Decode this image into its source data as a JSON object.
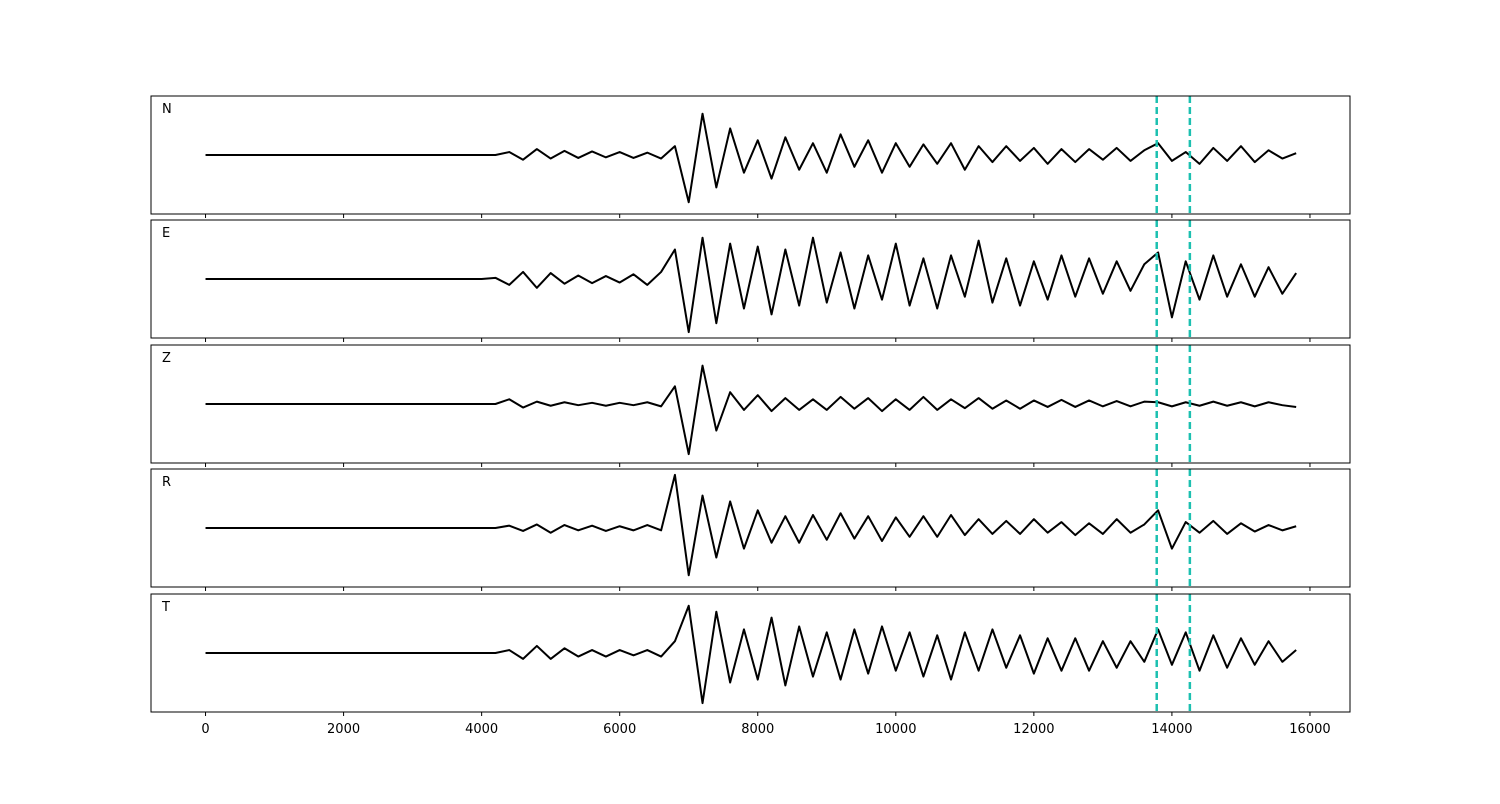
{
  "chart_data": [
    {
      "type": "line",
      "label": "N",
      "x": [
        0,
        1000,
        2000,
        3000,
        4000,
        4200,
        4400,
        4600,
        4800,
        5000,
        5200,
        5400,
        5600,
        5800,
        6000,
        6200,
        6400,
        6600,
        6800,
        7000,
        7200,
        7400,
        7600,
        7800,
        8000,
        8200,
        8400,
        8600,
        8800,
        9000,
        9200,
        9400,
        9600,
        9800,
        10000,
        10200,
        10400,
        10600,
        10800,
        11000,
        11200,
        11400,
        11600,
        11800,
        12000,
        12200,
        12400,
        12600,
        12800,
        13000,
        13200,
        13400,
        13600,
        13800,
        14000,
        14200,
        14400,
        14600,
        14800,
        15000,
        15200,
        15400,
        15600,
        15800
      ],
      "series": [
        {
          "color": "#000000",
          "values": [
            0,
            0,
            0,
            0,
            0,
            0,
            0.05,
            -0.08,
            0.1,
            -0.06,
            0.07,
            -0.05,
            0.06,
            -0.04,
            0.05,
            -0.05,
            0.04,
            -0.06,
            0.15,
            -0.8,
            0.7,
            -0.55,
            0.45,
            -0.3,
            0.25,
            -0.4,
            0.3,
            -0.25,
            0.2,
            -0.3,
            0.35,
            -0.2,
            0.25,
            -0.3,
            0.2,
            -0.2,
            0.18,
            -0.15,
            0.2,
            -0.25,
            0.15,
            -0.12,
            0.15,
            -0.1,
            0.12,
            -0.15,
            0.1,
            -0.12,
            0.1,
            -0.08,
            0.12,
            -0.1,
            0.08,
            0.2,
            -0.1,
            0.05,
            -0.15,
            0.12,
            -0.1,
            0.15,
            -0.12,
            0.08,
            -0.06,
            0.03
          ]
        }
      ],
      "xlim": [
        -790,
        16580
      ],
      "ylim": [
        -1,
        1
      ],
      "vlines": {
        "values": [
          13780,
          14260
        ],
        "color": "#1cc0b0"
      }
    },
    {
      "type": "line",
      "label": "E",
      "x": [
        0,
        1000,
        2000,
        3000,
        4000,
        4200,
        4400,
        4600,
        4800,
        5000,
        5200,
        5400,
        5600,
        5800,
        6000,
        6200,
        6400,
        6600,
        6800,
        7000,
        7200,
        7400,
        7600,
        7800,
        8000,
        8200,
        8400,
        8600,
        8800,
        9000,
        9200,
        9400,
        9600,
        9800,
        10000,
        10200,
        10400,
        10600,
        10800,
        11000,
        11200,
        11400,
        11600,
        11800,
        12000,
        12200,
        12400,
        12600,
        12800,
        13000,
        13200,
        13400,
        13600,
        13800,
        14000,
        14200,
        14400,
        14600,
        14800,
        15000,
        15200,
        15400,
        15600,
        15800
      ],
      "series": [
        {
          "color": "#000000",
          "values": [
            0,
            0,
            0,
            0,
            0,
            0.02,
            -0.1,
            0.12,
            -0.15,
            0.1,
            -0.08,
            0.06,
            -0.07,
            0.05,
            -0.06,
            0.08,
            -0.1,
            0.12,
            0.5,
            -0.9,
            0.7,
            -0.75,
            0.6,
            -0.5,
            0.55,
            -0.6,
            0.5,
            -0.45,
            0.7,
            -0.4,
            0.45,
            -0.5,
            0.4,
            -0.35,
            0.6,
            -0.45,
            0.35,
            -0.5,
            0.4,
            -0.3,
            0.65,
            -0.4,
            0.35,
            -0.45,
            0.3,
            -0.35,
            0.4,
            -0.3,
            0.35,
            -0.25,
            0.3,
            -0.2,
            0.25,
            0.45,
            -0.65,
            0.3,
            -0.35,
            0.4,
            -0.3,
            0.25,
            -0.3,
            0.2,
            -0.25,
            0.1
          ]
        }
      ],
      "xlim": [
        -790,
        16580
      ],
      "ylim": [
        -1,
        1
      ],
      "vlines": {
        "values": [
          13780,
          14260
        ],
        "color": "#1cc0b0"
      }
    },
    {
      "type": "line",
      "label": "Z",
      "x": [
        0,
        1000,
        2000,
        3000,
        4000,
        4200,
        4400,
        4600,
        4800,
        5000,
        5200,
        5400,
        5600,
        5800,
        6000,
        6200,
        6400,
        6600,
        6800,
        7000,
        7200,
        7400,
        7600,
        7800,
        8000,
        8200,
        8400,
        8600,
        8800,
        9000,
        9200,
        9400,
        9600,
        9800,
        10000,
        10200,
        10400,
        10600,
        10800,
        11000,
        11200,
        11400,
        11600,
        11800,
        12000,
        12200,
        12400,
        12600,
        12800,
        13000,
        13200,
        13400,
        13600,
        13800,
        14000,
        14200,
        14400,
        14600,
        14800,
        15000,
        15200,
        15400,
        15600,
        15800
      ],
      "series": [
        {
          "color": "#000000",
          "values": [
            0,
            0,
            0,
            0,
            0,
            0,
            0.08,
            -0.06,
            0.04,
            -0.03,
            0.03,
            -0.02,
            0.02,
            -0.03,
            0.02,
            -0.02,
            0.03,
            -0.04,
            0.3,
            -0.85,
            0.65,
            -0.45,
            0.2,
            -0.1,
            0.15,
            -0.12,
            0.1,
            -0.1,
            0.08,
            -0.1,
            0.12,
            -0.08,
            0.1,
            -0.12,
            0.08,
            -0.1,
            0.12,
            -0.1,
            0.08,
            -0.07,
            0.1,
            -0.08,
            0.06,
            -0.08,
            0.06,
            -0.05,
            0.07,
            -0.05,
            0.06,
            -0.04,
            0.05,
            -0.04,
            0.04,
            0.03,
            -0.04,
            0.03,
            -0.03,
            0.04,
            -0.03,
            0.03,
            -0.04,
            0.03,
            -0.02,
            -0.05
          ]
        }
      ],
      "xlim": [
        -790,
        16580
      ],
      "ylim": [
        -1,
        1
      ],
      "vlines": {
        "values": [
          13780,
          14260
        ],
        "color": "#1cc0b0"
      }
    },
    {
      "type": "line",
      "label": "R",
      "x": [
        0,
        1000,
        2000,
        3000,
        4000,
        4200,
        4400,
        4600,
        4800,
        5000,
        5200,
        5400,
        5600,
        5800,
        6000,
        6200,
        6400,
        6600,
        6800,
        7000,
        7200,
        7400,
        7600,
        7800,
        8000,
        8200,
        8400,
        8600,
        8800,
        9000,
        9200,
        9400,
        9600,
        9800,
        10000,
        10200,
        10400,
        10600,
        10800,
        11000,
        11200,
        11400,
        11600,
        11800,
        12000,
        12200,
        12400,
        12600,
        12800,
        13000,
        13200,
        13400,
        13600,
        13800,
        14000,
        14200,
        14400,
        14600,
        14800,
        15000,
        15200,
        15400,
        15600,
        15800
      ],
      "series": [
        {
          "color": "#000000",
          "values": [
            0,
            0,
            0,
            0,
            0,
            0,
            0.04,
            -0.05,
            0.06,
            -0.08,
            0.05,
            -0.04,
            0.04,
            -0.05,
            0.03,
            -0.04,
            0.05,
            -0.04,
            0.9,
            -0.8,
            0.55,
            -0.5,
            0.45,
            -0.35,
            0.3,
            -0.25,
            0.2,
            -0.25,
            0.22,
            -0.2,
            0.25,
            -0.18,
            0.2,
            -0.22,
            0.18,
            -0.15,
            0.2,
            -0.15,
            0.22,
            -0.12,
            0.15,
            -0.1,
            0.12,
            -0.1,
            0.15,
            -0.08,
            0.1,
            -0.12,
            0.08,
            -0.1,
            0.15,
            -0.08,
            0.06,
            0.3,
            -0.35,
            0.1,
            -0.08,
            0.12,
            -0.1,
            0.08,
            -0.06,
            0.05,
            -0.04,
            0.03
          ]
        }
      ],
      "xlim": [
        -790,
        16580
      ],
      "ylim": [
        -1,
        1
      ],
      "vlines": {
        "values": [
          13780,
          14260
        ],
        "color": "#1cc0b0"
      }
    },
    {
      "type": "line",
      "label": "T",
      "x": [
        0,
        1000,
        2000,
        3000,
        4000,
        4200,
        4400,
        4600,
        4800,
        5000,
        5200,
        5400,
        5600,
        5800,
        6000,
        6200,
        6400,
        6600,
        6800,
        7000,
        7200,
        7400,
        7600,
        7800,
        8000,
        8200,
        8400,
        8600,
        8800,
        9000,
        9200,
        9400,
        9600,
        9800,
        10000,
        10200,
        10400,
        10600,
        10800,
        11000,
        11200,
        11400,
        11600,
        11800,
        12000,
        12200,
        12400,
        12600,
        12800,
        13000,
        13200,
        13400,
        13600,
        13800,
        14000,
        14200,
        14400,
        14600,
        14800,
        15000,
        15200,
        15400,
        15600,
        15800
      ],
      "series": [
        {
          "color": "#000000",
          "values": [
            0,
            0,
            0,
            0,
            0,
            0,
            0.05,
            -0.1,
            0.12,
            -0.1,
            0.08,
            -0.06,
            0.05,
            -0.06,
            0.05,
            -0.04,
            0.05,
            -0.06,
            0.2,
            0.8,
            -0.85,
            0.7,
            -0.5,
            0.4,
            -0.45,
            0.6,
            -0.55,
            0.45,
            -0.4,
            0.35,
            -0.45,
            0.4,
            -0.35,
            0.45,
            -0.3,
            0.35,
            -0.4,
            0.3,
            -0.45,
            0.35,
            -0.3,
            0.4,
            -0.25,
            0.3,
            -0.35,
            0.25,
            -0.3,
            0.25,
            -0.3,
            0.2,
            -0.25,
            0.2,
            -0.15,
            0.4,
            -0.2,
            0.35,
            -0.3,
            0.3,
            -0.25,
            0.25,
            -0.2,
            0.2,
            -0.15,
            0.05
          ]
        }
      ],
      "xlim": [
        -790,
        16580
      ],
      "ylim": [
        -1,
        1
      ],
      "vlines": {
        "values": [
          13780,
          14260
        ],
        "color": "#1cc0b0"
      },
      "xticks": [
        0,
        2000,
        4000,
        6000,
        8000,
        10000,
        12000,
        14000,
        16000
      ]
    }
  ]
}
